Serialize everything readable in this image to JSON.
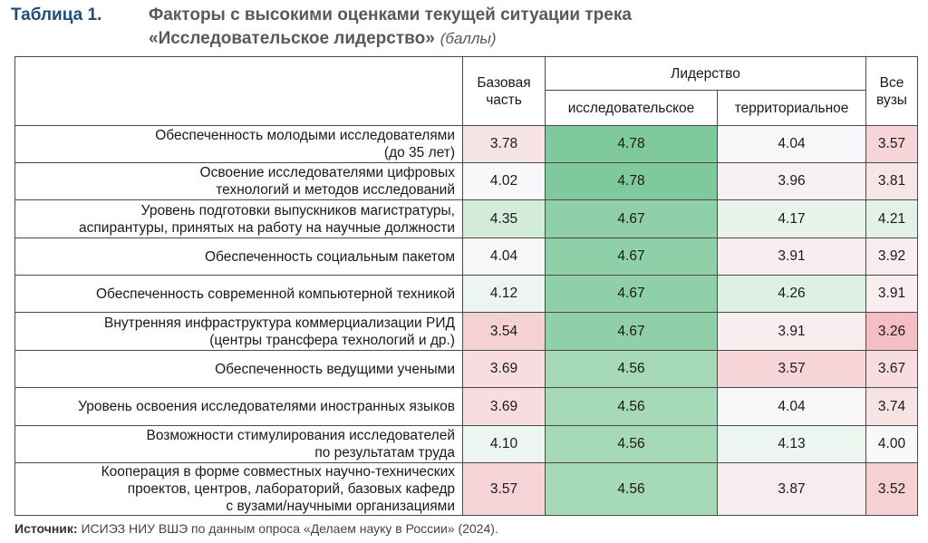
{
  "title": {
    "label": "Таблица 1.",
    "line1": "Факторы с высокими оценками текущей ситуации трека",
    "line2": "«Исследовательское лидерство»",
    "unit": "(баллы)"
  },
  "table": {
    "headers": {
      "base": [
        "Базовая",
        "часть"
      ],
      "leadership": "Лидерство",
      "research": "исследовательское",
      "territorial": "территориальное",
      "all": [
        "Все",
        "вузы"
      ]
    },
    "rows": [
      {
        "label": [
          "Обеспеченность молодыми исследователями",
          "(до 35 лет)"
        ],
        "values": [
          "3.78",
          "4.78",
          "4.04",
          "3.57"
        ],
        "colors": [
          "#f7e4e6",
          "#7fc99c",
          "#f8f8fb",
          "#f7d4d7"
        ]
      },
      {
        "label": [
          "Освоение исследователями цифровых",
          "технологий и методов исследований"
        ],
        "values": [
          "4.02",
          "4.78",
          "3.96",
          "3.81"
        ],
        "colors": [
          "#f8f8fb",
          "#7fc99c",
          "#f8f1f3",
          "#f7e6e8"
        ]
      },
      {
        "label": [
          "Уровень подготовки выпускников магистратуры,",
          "аспирантуры, принятых на работу на научные должности"
        ],
        "values": [
          "4.35",
          "4.67",
          "4.17",
          "4.21"
        ],
        "colors": [
          "#d3ebd9",
          "#8fd0a8",
          "#e8f3ec",
          "#e3f1e8"
        ]
      },
      {
        "label": [
          "Обеспеченность социальным пакетом"
        ],
        "values": [
          "4.04",
          "4.67",
          "3.91",
          "3.92"
        ],
        "colors": [
          "#f8f8fb",
          "#8fd0a8",
          "#f8eef0",
          "#f8eef0"
        ]
      },
      {
        "label": [
          "Обеспеченность современной компьютерной техникой"
        ],
        "values": [
          "4.12",
          "4.67",
          "4.26",
          "3.91"
        ],
        "colors": [
          "#edf5f0",
          "#8fd0a8",
          "#deefe4",
          "#f8eef0"
        ]
      },
      {
        "label": [
          "Внутренняя инфраструктура коммерциализации РИД",
          "(центры трансфера технологий и др.)"
        ],
        "values": [
          "3.54",
          "4.67",
          "3.91",
          "3.26"
        ],
        "colors": [
          "#f7d2d5",
          "#8fd0a8",
          "#f8eef0",
          "#f5bec3"
        ]
      },
      {
        "label": [
          "Обеспеченность ведущими учеными"
        ],
        "values": [
          "3.69",
          "4.56",
          "3.57",
          "3.67"
        ],
        "colors": [
          "#f7dde0",
          "#a6d9b8",
          "#f7d4d7",
          "#f7dde0"
        ]
      },
      {
        "label": [
          "Уровень освоения исследователями иностранных языков"
        ],
        "values": [
          "3.69",
          "4.56",
          "4.04",
          "3.74"
        ],
        "colors": [
          "#f7dde0",
          "#a6d9b8",
          "#f8f8fb",
          "#f7e2e4"
        ]
      },
      {
        "label": [
          "Возможности стимулирования исследователей",
          "по результатам труда"
        ],
        "values": [
          "4.10",
          "4.56",
          "4.13",
          "4.00"
        ],
        "colors": [
          "#eef6f1",
          "#a6d9b8",
          "#ecf5ef",
          "#f8f8fb"
        ]
      },
      {
        "label": [
          "Кооперация в форме совместных научно-технических",
          "проектов, центров, лабораторий, базовых кафедр",
          "с вузами/научными организациями"
        ],
        "values": [
          "3.57",
          "4.56",
          "3.87",
          "3.52"
        ],
        "colors": [
          "#f7d4d7",
          "#a6d9b8",
          "#f8ecee",
          "#f7d0d4"
        ]
      }
    ]
  },
  "source": {
    "label": "Источник:",
    "text": " ИСИЭЗ НИУ ВШЭ по данным опроса «Делаем науку в России» (2024)."
  }
}
